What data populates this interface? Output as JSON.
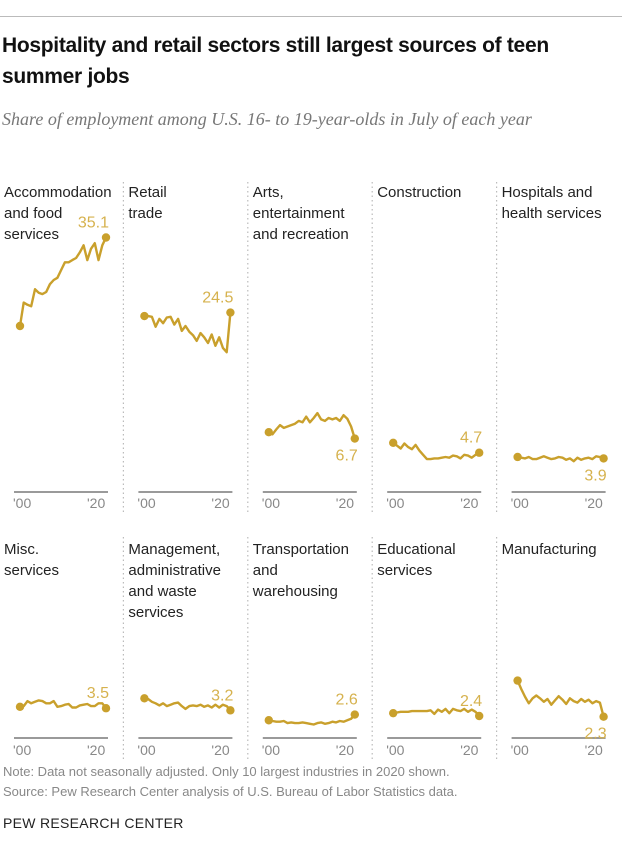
{
  "title": "Hospitality and retail sectors still largest sources of teen summer jobs",
  "subtitle": "Share of employment among U.S. 16- to 19-year-olds in July of each year",
  "note": "Note: Data not seasonally adjusted. Only 10 largest industries in 2020 shown.",
  "source": "Source: Pew Research Center analysis of U.S. Bureau of Labor Statistics data.",
  "brand": "PEW RESEARCH CENTER",
  "colors": {
    "line": "#c9a02c",
    "label": "#d6b24e",
    "axis": "#9a9a9a",
    "divider": "#bbbbbb"
  },
  "chart_data": {
    "type": "line",
    "layout": "small-multiples",
    "grid": false,
    "x": [
      2000,
      2001,
      2002,
      2003,
      2004,
      2005,
      2006,
      2007,
      2008,
      2009,
      2010,
      2011,
      2012,
      2013,
      2014,
      2015,
      2016,
      2017,
      2018,
      2019,
      2020,
      2021,
      2022,
      2023
    ],
    "x_tick_labels": [
      "'00",
      "'20"
    ],
    "ylim": [
      0,
      36
    ],
    "panels": [
      {
        "label_lines": [
          "Accommodation",
          "and food",
          "services"
        ],
        "end_label": "35.1",
        "end_label_position": "above",
        "values": [
          22.6,
          25.9,
          25.6,
          25.4,
          27.8,
          27.3,
          27.1,
          27.4,
          28.5,
          29.1,
          29.4,
          30.5,
          31.6,
          31.6,
          31.9,
          32.2,
          33.0,
          34.0,
          31.9,
          33.5,
          34.3,
          31.9,
          34.0,
          35.1
        ]
      },
      {
        "label_lines": [
          "Retail",
          "trade"
        ],
        "end_label": "24.5",
        "end_label_position": "above",
        "values": [
          24.0,
          24.0,
          23.9,
          22.5,
          23.6,
          23.0,
          23.8,
          23.9,
          22.8,
          23.6,
          21.9,
          22.6,
          21.8,
          21.3,
          20.5,
          21.6,
          21.0,
          20.2,
          21.4,
          19.8,
          21.0,
          19.5,
          18.9,
          24.5
        ]
      },
      {
        "label_lines": [
          "Arts,",
          "entertainment",
          "and recreation"
        ],
        "end_label": "6.7",
        "end_label_position": "below",
        "values": [
          7.6,
          7.3,
          8.0,
          8.6,
          8.2,
          8.4,
          8.6,
          8.8,
          9.2,
          9.0,
          9.8,
          9.0,
          9.6,
          10.3,
          9.4,
          9.2,
          9.6,
          9.4,
          9.6,
          9.2,
          10.0,
          9.5,
          8.4,
          6.7
        ]
      },
      {
        "label_lines": [
          "Construction"
        ],
        "end_label": "4.7",
        "end_label_position": "above",
        "values": [
          6.1,
          5.7,
          5.3,
          6.0,
          5.5,
          5.2,
          5.8,
          5.0,
          4.4,
          3.8,
          3.8,
          3.9,
          3.9,
          4.0,
          4.1,
          4.0,
          4.3,
          4.2,
          3.9,
          4.4,
          4.3,
          4.0,
          4.4,
          4.7
        ]
      },
      {
        "label_lines": [
          "Hospitals and",
          "health services"
        ],
        "end_label": "3.9",
        "end_label_position": "below",
        "values": [
          4.1,
          4.0,
          3.9,
          4.1,
          3.8,
          3.8,
          4.0,
          4.2,
          4.0,
          3.8,
          3.9,
          4.1,
          4.0,
          3.7,
          3.9,
          3.5,
          4.0,
          3.7,
          3.9,
          4.0,
          3.8,
          4.2,
          4.1,
          3.9
        ]
      },
      {
        "label_lines": [
          "Misc.",
          "services"
        ],
        "end_label": "3.5",
        "end_label_position": "above",
        "values": [
          3.7,
          3.8,
          4.5,
          4.2,
          4.4,
          4.6,
          4.5,
          4.2,
          4.2,
          4.5,
          3.7,
          3.8,
          4.0,
          4.1,
          3.6,
          3.6,
          3.9,
          4.0,
          4.1,
          3.8,
          3.8,
          4.2,
          4.2,
          3.5
        ]
      },
      {
        "label_lines": [
          "Management,",
          "administrative",
          "and waste",
          "services"
        ],
        "end_label": "3.2",
        "end_label_position": "above",
        "values": [
          4.9,
          4.8,
          4.4,
          4.2,
          3.9,
          4.2,
          3.8,
          4.0,
          4.2,
          4.3,
          3.8,
          3.4,
          3.8,
          3.9,
          3.8,
          4.0,
          3.7,
          3.9,
          3.6,
          4.0,
          3.6,
          4.0,
          3.8,
          3.2
        ]
      },
      {
        "label_lines": [
          "Transportation",
          "and",
          "warehousing"
        ],
        "end_label": "2.6",
        "end_label_position": "above",
        "values": [
          1.8,
          1.7,
          1.6,
          1.6,
          1.7,
          1.4,
          1.5,
          1.4,
          1.4,
          1.5,
          1.4,
          1.3,
          1.2,
          1.4,
          1.5,
          1.3,
          1.4,
          1.6,
          1.5,
          1.7,
          1.6,
          1.8,
          2.0,
          2.6
        ]
      },
      {
        "label_lines": [
          "Educational",
          "services"
        ],
        "end_label": "2.4",
        "end_label_position": "above",
        "values": [
          2.8,
          2.9,
          3.0,
          3.0,
          3.0,
          3.1,
          3.1,
          3.1,
          3.1,
          3.1,
          3.2,
          2.7,
          3.3,
          3.0,
          3.4,
          2.8,
          3.4,
          3.2,
          3.1,
          3.4,
          3.0,
          3.3,
          3.0,
          2.4
        ]
      },
      {
        "label_lines": [
          "Manufacturing"
        ],
        "end_label": "2.3",
        "end_label_position": "below",
        "values": [
          7.4,
          6.2,
          5.1,
          4.2,
          4.9,
          5.3,
          4.9,
          4.4,
          4.8,
          4.0,
          4.6,
          5.2,
          4.7,
          4.1,
          4.9,
          4.5,
          4.3,
          4.8,
          4.4,
          4.7,
          4.2,
          4.5,
          4.3,
          2.3
        ]
      }
    ]
  }
}
